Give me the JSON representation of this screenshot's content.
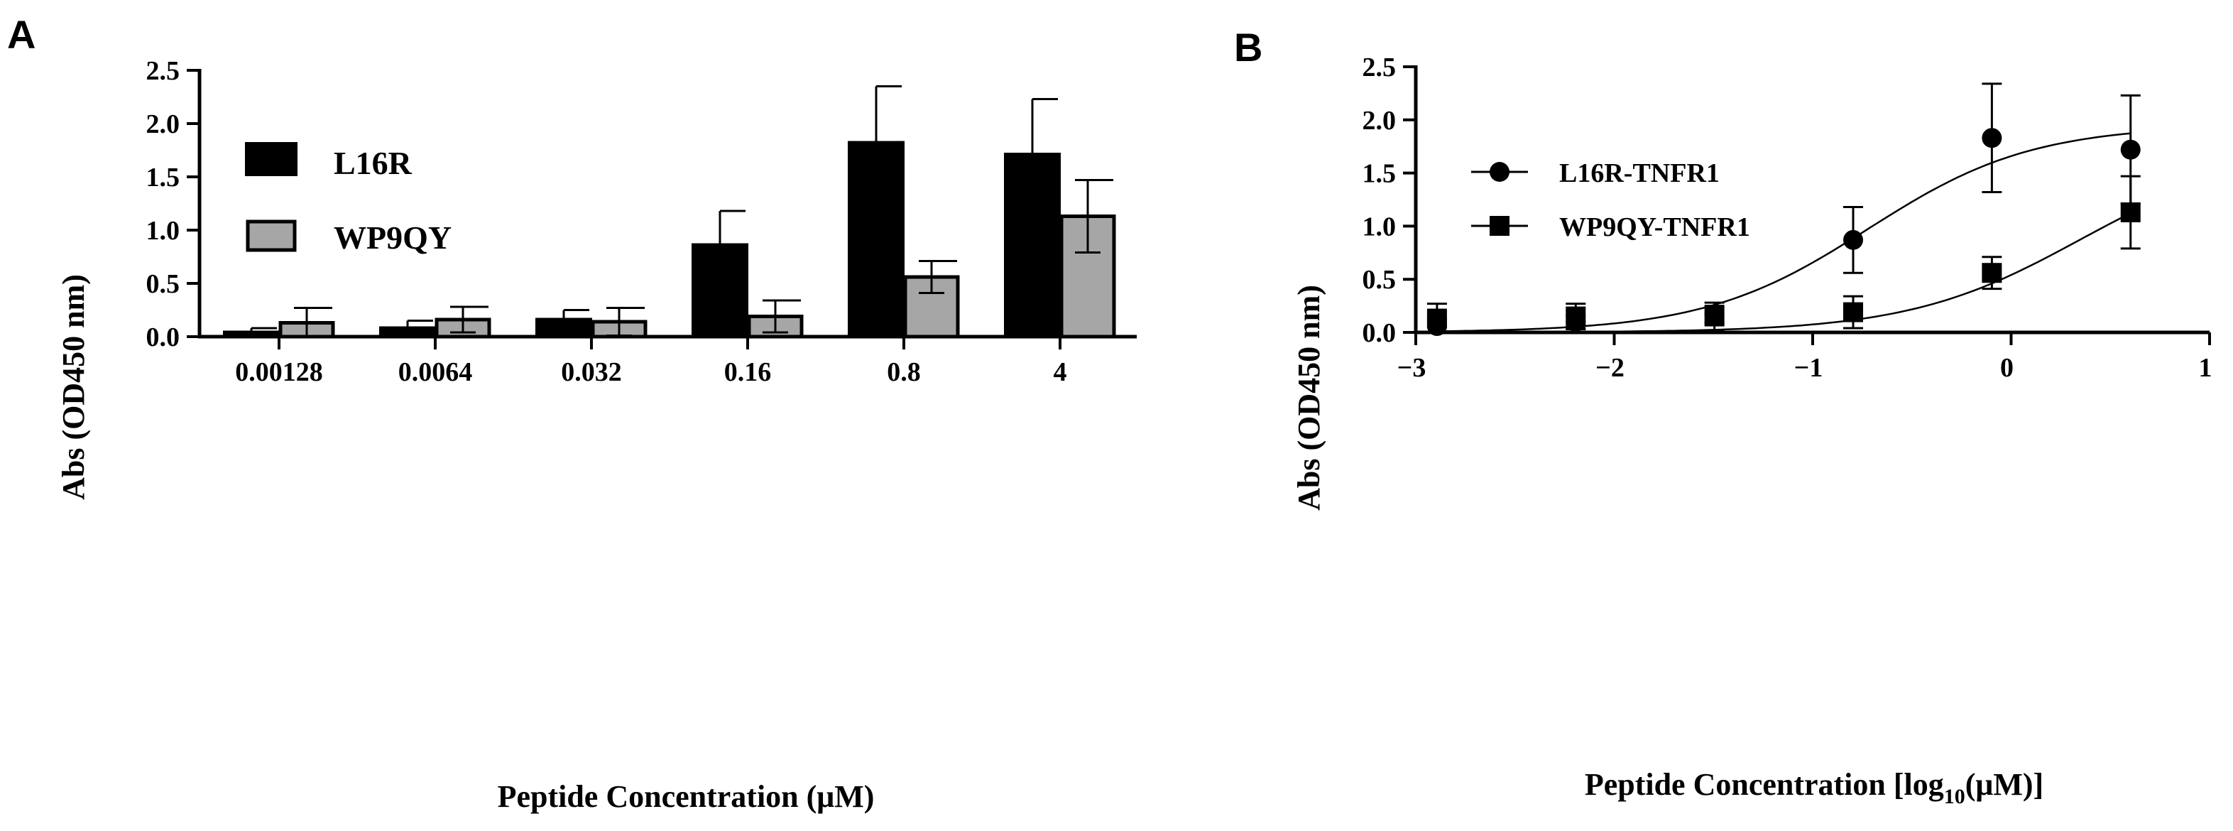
{
  "panels": {
    "a": {
      "letter": "A"
    },
    "b": {
      "letter": "B"
    }
  },
  "chart_data": [
    {
      "type": "bar",
      "panel": "A",
      "title": "",
      "xlabel": "Peptide Concentration (μM)",
      "ylabel": "Abs (OD450 nm)",
      "categories": [
        "0.00128",
        "0.0064",
        "0.032",
        "0.16",
        "0.8",
        "4"
      ],
      "ylim": [
        0,
        2.5
      ],
      "yticks": [
        "0.0",
        "0.5",
        "1.0",
        "1.5",
        "2.0",
        "2.5"
      ],
      "legend_position": "top-left",
      "series": [
        {
          "name": "L16R",
          "color": "#000000",
          "values": [
            0.05,
            0.09,
            0.17,
            0.87,
            1.83,
            1.72
          ],
          "errors": [
            0.03,
            0.06,
            0.08,
            0.31,
            0.52,
            0.51
          ]
        },
        {
          "name": "WP9QY",
          "color": "#a6a6a6",
          "values": [
            0.13,
            0.16,
            0.14,
            0.19,
            0.56,
            1.13
          ],
          "errors": [
            0.14,
            0.12,
            0.13,
            0.15,
            0.15,
            0.34
          ]
        }
      ]
    },
    {
      "type": "scatter",
      "panel": "B",
      "title": "",
      "xlabel": "Peptide Concentration [log10(μM)]",
      "xlabel_parts": {
        "pre": "Peptide Concentration [log",
        "sub": "10",
        "post": "(μM)]"
      },
      "ylabel": "Abs (OD450 nm)",
      "xlim": [
        -3,
        1
      ],
      "ylim": [
        0,
        2.5
      ],
      "xticks": [
        "-3",
        "-2",
        "-1",
        "0",
        "1"
      ],
      "yticks": [
        "0.0",
        "0.5",
        "1.0",
        "1.5",
        "2.0",
        "2.5"
      ],
      "legend_position": "top-left",
      "series": [
        {
          "name": "L16R-TNFR1",
          "marker": "circle",
          "x": [
            -2.893,
            -2.194,
            -1.495,
            -0.796,
            -0.097,
            0.602
          ],
          "y": [
            0.06,
            0.1,
            0.17,
            0.87,
            1.83,
            1.72
          ],
          "errors": [
            0.06,
            0.06,
            0.08,
            0.31,
            0.51,
            0.51
          ],
          "fit": {
            "bottom": 0.0,
            "top": 1.95,
            "logEC50": -0.72,
            "hill": 1.05
          }
        },
        {
          "name": "WP9QY-TNFR1",
          "marker": "square",
          "x": [
            -2.893,
            -2.194,
            -1.495,
            -0.796,
            -0.097,
            0.602
          ],
          "y": [
            0.13,
            0.15,
            0.15,
            0.19,
            0.56,
            1.13
          ],
          "errors": [
            0.14,
            0.12,
            0.13,
            0.15,
            0.15,
            0.34
          ],
          "fit": {
            "bottom": 0.0,
            "top": 1.75,
            "logEC50": 0.35,
            "hill": 1.0
          }
        }
      ]
    }
  ]
}
